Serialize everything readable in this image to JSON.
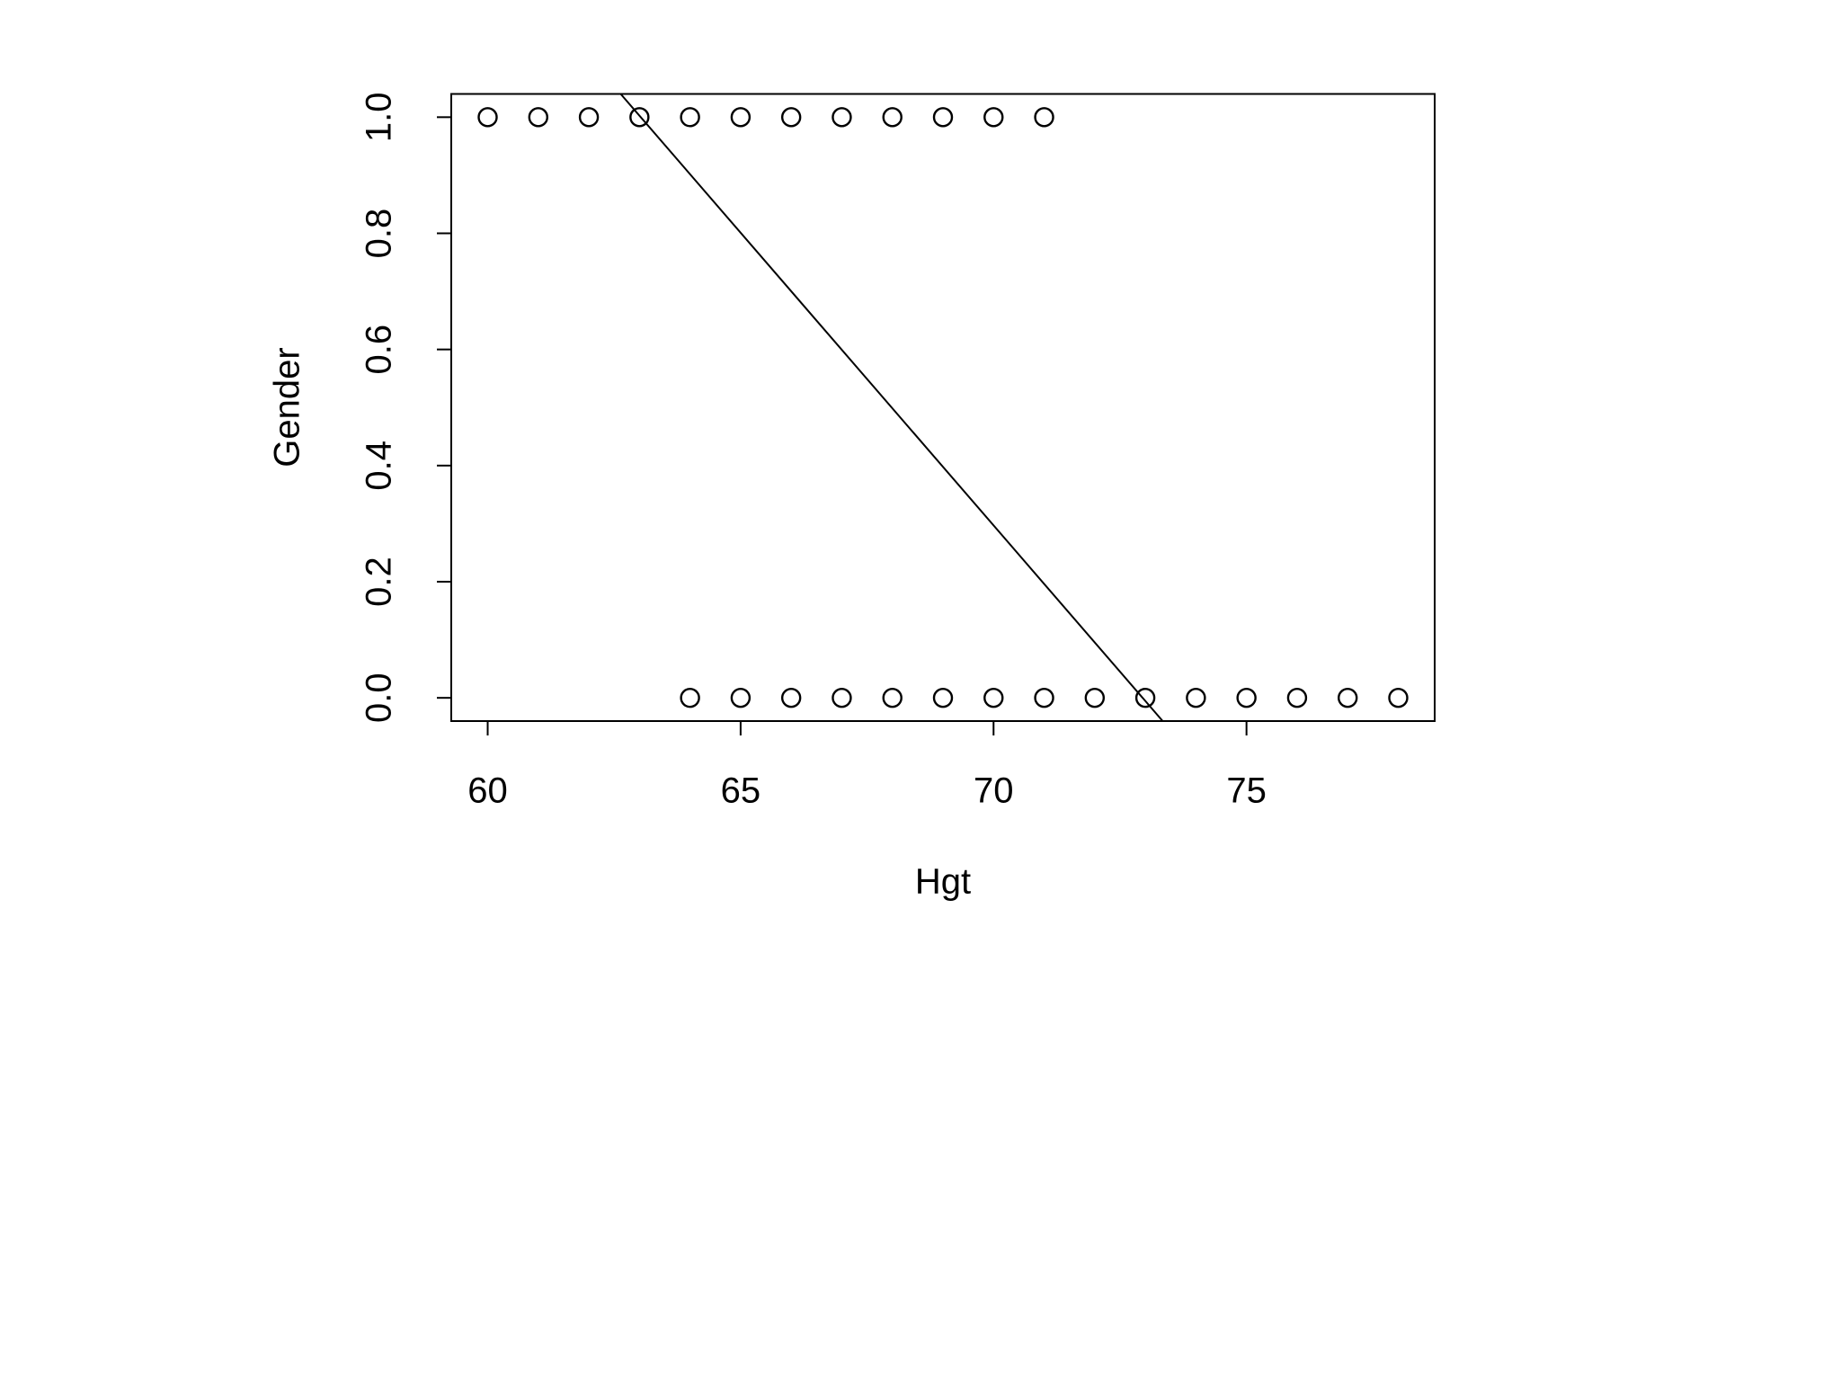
{
  "chart_data": {
    "type": "scatter",
    "x_label": "Hgt",
    "y_label": "Gender",
    "x": [
      60,
      61,
      62,
      63,
      64,
      65,
      66,
      67,
      68,
      69,
      70,
      71,
      64,
      65,
      66,
      67,
      68,
      69,
      70,
      71,
      72,
      73,
      74,
      75,
      76,
      77,
      78
    ],
    "values": [
      1,
      1,
      1,
      1,
      1,
      1,
      1,
      1,
      1,
      1,
      1,
      1,
      0,
      0,
      0,
      0,
      0,
      0,
      0,
      0,
      0,
      0,
      0,
      0,
      0,
      0,
      0
    ],
    "fit_line": {
      "intercept": 7.353,
      "slope": -0.1008
    },
    "color": "#000000",
    "xlim": [
      59.28,
      78.72
    ],
    "ylim": [
      -0.04,
      1.04
    ],
    "xticks": [
      60,
      65,
      70,
      75
    ],
    "yticks": [
      {
        "value": 0,
        "label": "0.0"
      },
      0.2,
      0.4,
      0.6,
      0.8,
      {
        "value": 1,
        "label": "1.0"
      }
    ],
    "grid": false
  }
}
